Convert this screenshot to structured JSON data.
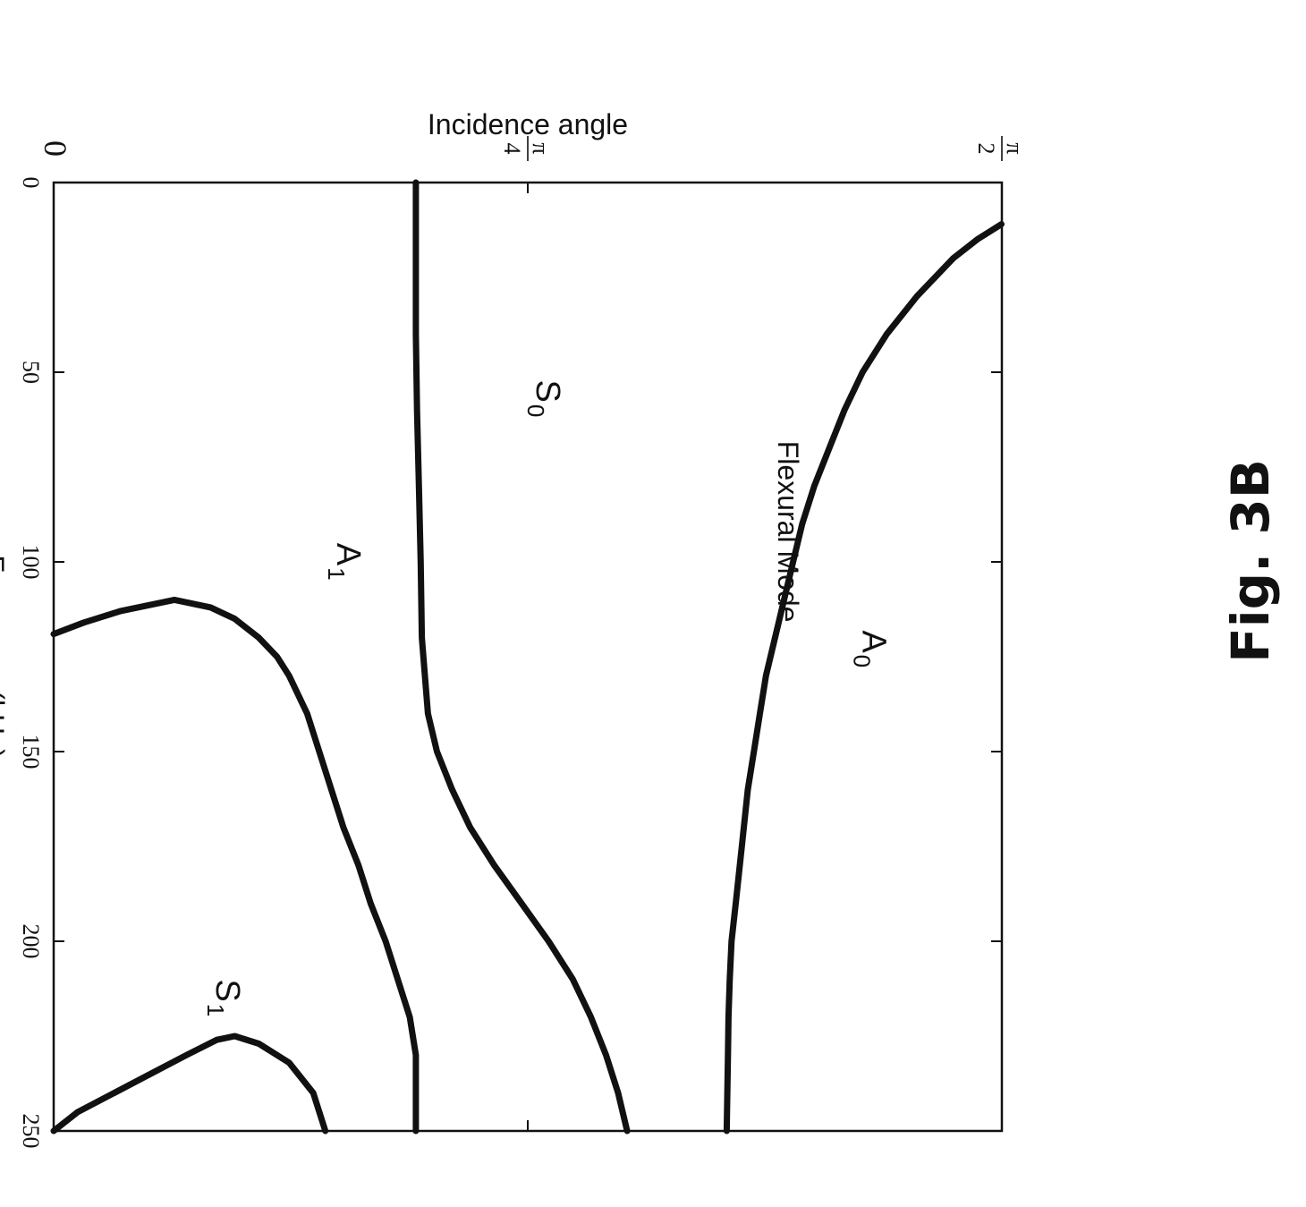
{
  "figure_caption": "Fig. 3B",
  "chart_data": {
    "type": "line",
    "xlabel": "Frequency(kHz)",
    "ylabel": "Incidence angle",
    "xlim": [
      0,
      250
    ],
    "ylim": [
      0,
      1.5708
    ],
    "x_ticks": [
      0,
      50,
      100,
      150,
      200,
      250
    ],
    "x_tick_labels": [
      "0",
      "50",
      "100",
      "150",
      "200",
      "250"
    ],
    "y_ticks": [
      0,
      0.7854,
      1.5708
    ],
    "y_tick_labels": [
      {
        "num": "0",
        "den": ""
      },
      {
        "num": "π",
        "den": "4"
      },
      {
        "num": "π",
        "den": "2"
      }
    ],
    "grid": false,
    "orientation": "page rotated 90° clockwise",
    "annotation": "Flexural Mode",
    "series": [
      {
        "name": "A0",
        "label_main": "A",
        "label_sub": "0",
        "label_at": [
          118,
          1.34
        ],
        "x": [
          11,
          15,
          20,
          30,
          40,
          50,
          60,
          70,
          80,
          90,
          100,
          110,
          120,
          130,
          140,
          150,
          160,
          175,
          190,
          200,
          210,
          220,
          230,
          240,
          250
        ],
        "y": [
          1.57,
          1.53,
          1.49,
          1.43,
          1.38,
          1.34,
          1.31,
          1.285,
          1.26,
          1.24,
          1.225,
          1.21,
          1.195,
          1.18,
          1.17,
          1.16,
          1.15,
          1.14,
          1.13,
          1.123,
          1.12,
          1.118,
          1.117,
          1.116,
          1.115
        ]
      },
      {
        "name": "S0",
        "label_main": "S",
        "label_sub": "0",
        "label_at": [
          52,
          0.8
        ],
        "x": [
          0,
          20,
          40,
          60,
          80,
          100,
          120,
          140,
          150,
          160,
          170,
          180,
          190,
          200,
          210,
          220,
          230,
          240,
          250
        ],
        "y": [
          0.6,
          0.6,
          0.6,
          0.602,
          0.605,
          0.608,
          0.61,
          0.62,
          0.635,
          0.66,
          0.69,
          0.73,
          0.775,
          0.82,
          0.86,
          0.89,
          0.915,
          0.935,
          0.95
        ]
      },
      {
        "name": "A1",
        "label_main": "A",
        "label_sub": "1",
        "label_at": [
          95,
          0.47
        ],
        "x": [
          119,
          116,
          113,
          110,
          112,
          115,
          120,
          125,
          130,
          140,
          150,
          160,
          170,
          180,
          190,
          200,
          210,
          220,
          230,
          240,
          250
        ],
        "y": [
          0.0,
          0.05,
          0.11,
          0.2,
          0.26,
          0.3,
          0.34,
          0.37,
          0.39,
          0.42,
          0.44,
          0.46,
          0.48,
          0.505,
          0.525,
          0.55,
          0.57,
          0.59,
          0.6,
          0.6,
          0.6
        ]
      },
      {
        "name": "S1",
        "label_main": "S",
        "label_sub": "1",
        "label_at": [
          210,
          0.27
        ],
        "x": [
          250,
          245,
          240,
          235,
          230,
          226,
          225,
          227,
          232,
          240,
          250
        ],
        "y": [
          0.0,
          0.04,
          0.1,
          0.16,
          0.22,
          0.27,
          0.3,
          0.34,
          0.39,
          0.43,
          0.45
        ]
      }
    ]
  }
}
